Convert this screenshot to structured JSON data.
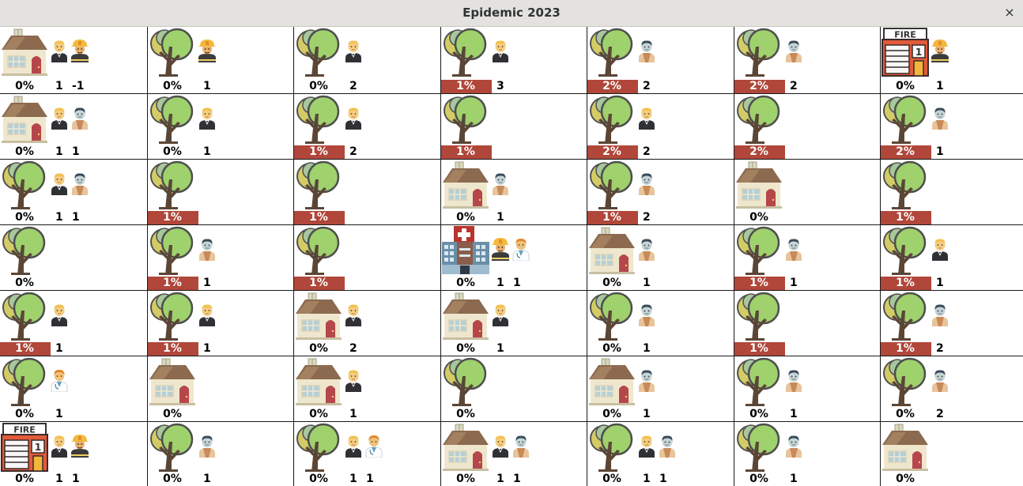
{
  "window": {
    "title": "Epidemic 2023",
    "close_label": "×"
  },
  "colors": {
    "infected_bar": "#b0473a",
    "titlebar": "#e4e2df",
    "grid_line": "#1a1a1a"
  },
  "grid": {
    "rows": [
      [
        {
          "place": "house",
          "people": [
            "citizen",
            "firefighter"
          ],
          "infection": "0%",
          "infected": false,
          "counts": [
            "1",
            "-1"
          ]
        },
        {
          "place": "tree",
          "people": [
            "firefighter"
          ],
          "infection": "0%",
          "infected": false,
          "counts": [
            "1"
          ]
        },
        {
          "place": "tree",
          "people": [
            "citizen"
          ],
          "infection": "0%",
          "infected": false,
          "counts": [
            "2"
          ]
        },
        {
          "place": "tree",
          "people": [
            "citizen"
          ],
          "infection": "1%",
          "infected": true,
          "counts": [
            "3"
          ]
        },
        {
          "place": "tree",
          "people": [
            "zombie"
          ],
          "infection": "2%",
          "infected": true,
          "counts": [
            "2"
          ]
        },
        {
          "place": "tree",
          "people": [
            "zombie"
          ],
          "infection": "2%",
          "infected": true,
          "counts": [
            "2"
          ]
        },
        {
          "place": "firestation",
          "people": [
            "firefighter"
          ],
          "infection": "0%",
          "infected": false,
          "counts": [
            "1"
          ]
        }
      ],
      [
        {
          "place": "house",
          "people": [
            "citizen",
            "zombie"
          ],
          "infection": "0%",
          "infected": false,
          "counts": [
            "1",
            "1"
          ]
        },
        {
          "place": "tree",
          "people": [
            "citizen"
          ],
          "infection": "0%",
          "infected": false,
          "counts": [
            "1"
          ]
        },
        {
          "place": "tree",
          "people": [
            "citizen"
          ],
          "infection": "1%",
          "infected": true,
          "counts": [
            "2"
          ]
        },
        {
          "place": "tree",
          "people": [],
          "infection": "1%",
          "infected": true,
          "counts": []
        },
        {
          "place": "tree",
          "people": [
            "citizen"
          ],
          "infection": "2%",
          "infected": true,
          "counts": [
            "2"
          ]
        },
        {
          "place": "tree",
          "people": [],
          "infection": "2%",
          "infected": true,
          "counts": []
        },
        {
          "place": "tree",
          "people": [
            "zombie"
          ],
          "infection": "2%",
          "infected": true,
          "counts": [
            "1"
          ]
        }
      ],
      [
        {
          "place": "tree",
          "people": [
            "citizen",
            "zombie"
          ],
          "infection": "0%",
          "infected": false,
          "counts": [
            "1",
            "1"
          ]
        },
        {
          "place": "tree",
          "people": [],
          "infection": "1%",
          "infected": true,
          "counts": []
        },
        {
          "place": "tree",
          "people": [],
          "infection": "1%",
          "infected": true,
          "counts": []
        },
        {
          "place": "house",
          "people": [
            "zombie"
          ],
          "infection": "0%",
          "infected": false,
          "counts": [
            "1"
          ]
        },
        {
          "place": "tree",
          "people": [
            "zombie"
          ],
          "infection": "1%",
          "infected": true,
          "counts": [
            "2"
          ]
        },
        {
          "place": "house",
          "people": [],
          "infection": "0%",
          "infected": false,
          "counts": []
        },
        {
          "place": "tree",
          "people": [],
          "infection": "1%",
          "infected": true,
          "counts": []
        }
      ],
      [
        {
          "place": "tree",
          "people": [],
          "infection": "0%",
          "infected": false,
          "counts": []
        },
        {
          "place": "tree",
          "people": [
            "zombie"
          ],
          "infection": "1%",
          "infected": true,
          "counts": [
            "1"
          ]
        },
        {
          "place": "tree",
          "people": [],
          "infection": "1%",
          "infected": true,
          "counts": []
        },
        {
          "place": "hospital",
          "people": [
            "firefighter",
            "doctor"
          ],
          "infection": "0%",
          "infected": false,
          "counts": [
            "1",
            "1"
          ]
        },
        {
          "place": "house",
          "people": [
            "zombie"
          ],
          "infection": "0%",
          "infected": false,
          "counts": [
            "1"
          ]
        },
        {
          "place": "tree",
          "people": [
            "zombie"
          ],
          "infection": "1%",
          "infected": true,
          "counts": [
            "1"
          ]
        },
        {
          "place": "tree",
          "people": [
            "citizen"
          ],
          "infection": "1%",
          "infected": true,
          "counts": [
            "1"
          ]
        }
      ],
      [
        {
          "place": "tree",
          "people": [
            "citizen"
          ],
          "infection": "1%",
          "infected": true,
          "counts": [
            "1"
          ]
        },
        {
          "place": "tree",
          "people": [
            "citizen"
          ],
          "infection": "1%",
          "infected": true,
          "counts": [
            "1"
          ]
        },
        {
          "place": "house",
          "people": [
            "citizen"
          ],
          "infection": "0%",
          "infected": false,
          "counts": [
            "2"
          ]
        },
        {
          "place": "house",
          "people": [
            "citizen"
          ],
          "infection": "0%",
          "infected": false,
          "counts": [
            "1"
          ]
        },
        {
          "place": "tree",
          "people": [
            "zombie"
          ],
          "infection": "0%",
          "infected": false,
          "counts": [
            "1"
          ]
        },
        {
          "place": "tree",
          "people": [],
          "infection": "1%",
          "infected": true,
          "counts": []
        },
        {
          "place": "tree",
          "people": [
            "zombie"
          ],
          "infection": "1%",
          "infected": true,
          "counts": [
            "2"
          ]
        }
      ],
      [
        {
          "place": "tree",
          "people": [
            "doctor"
          ],
          "infection": "0%",
          "infected": false,
          "counts": [
            "1"
          ]
        },
        {
          "place": "house",
          "people": [],
          "infection": "0%",
          "infected": false,
          "counts": []
        },
        {
          "place": "house",
          "people": [
            "citizen"
          ],
          "infection": "0%",
          "infected": false,
          "counts": [
            "1"
          ]
        },
        {
          "place": "tree",
          "people": [],
          "infection": "0%",
          "infected": false,
          "counts": []
        },
        {
          "place": "house",
          "people": [
            "zombie"
          ],
          "infection": "0%",
          "infected": false,
          "counts": [
            "1"
          ]
        },
        {
          "place": "tree",
          "people": [
            "zombie"
          ],
          "infection": "0%",
          "infected": false,
          "counts": [
            "1"
          ]
        },
        {
          "place": "tree",
          "people": [
            "zombie"
          ],
          "infection": "0%",
          "infected": false,
          "counts": [
            "2"
          ]
        }
      ],
      [
        {
          "place": "firestation",
          "people": [
            "citizen",
            "firefighter"
          ],
          "infection": "0%",
          "infected": false,
          "counts": [
            "1",
            "1"
          ]
        },
        {
          "place": "tree",
          "people": [
            "zombie"
          ],
          "infection": "0%",
          "infected": false,
          "counts": [
            "1"
          ]
        },
        {
          "place": "tree",
          "people": [
            "citizen",
            "doctor"
          ],
          "infection": "0%",
          "infected": false,
          "counts": [
            "1",
            "1"
          ]
        },
        {
          "place": "house",
          "people": [
            "citizen",
            "zombie"
          ],
          "infection": "0%",
          "infected": false,
          "counts": [
            "1",
            "1"
          ]
        },
        {
          "place": "tree",
          "people": [
            "citizen",
            "zombie"
          ],
          "infection": "0%",
          "infected": false,
          "counts": [
            "1",
            "1"
          ]
        },
        {
          "place": "tree",
          "people": [
            "zombie"
          ],
          "infection": "0%",
          "infected": false,
          "counts": [
            "1"
          ]
        },
        {
          "place": "house",
          "people": [],
          "infection": "0%",
          "infected": false,
          "counts": []
        }
      ]
    ]
  }
}
